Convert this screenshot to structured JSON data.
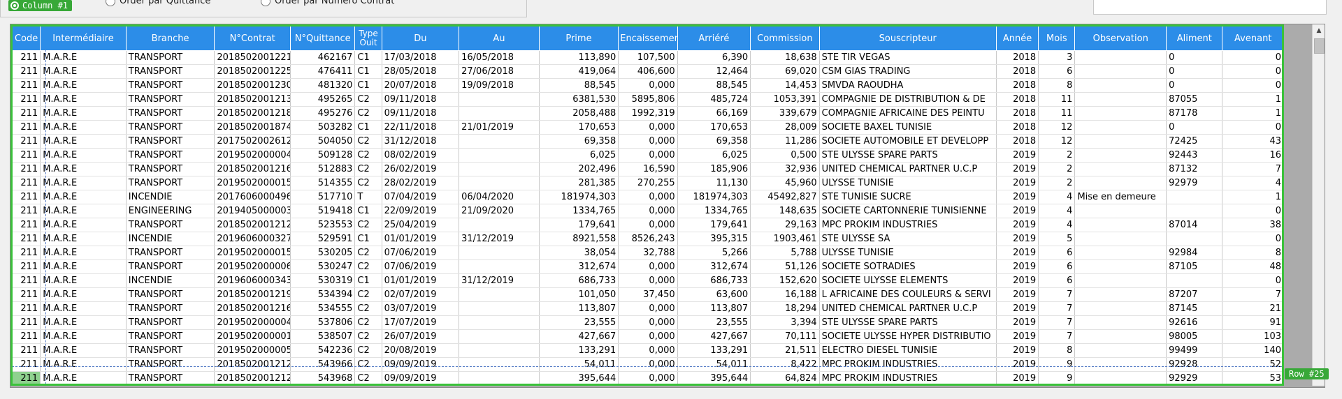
{
  "top_panel": {
    "radio_quittance": "Order par Quittance",
    "radio_contrat": "Order par Numéro Contrat"
  },
  "overlay": {
    "column_badge": "Column #1",
    "row_badge": "Row #25"
  },
  "colors": {
    "header_bg": "#2c8de8",
    "selection": "#3ac23a"
  },
  "columns": [
    "Code",
    "Intermédiaire",
    "Branche",
    "N°Contrat",
    "N°Quittance",
    "Type Ouit",
    "Du",
    "Au",
    "Prime",
    "Encaissement",
    "Arriéré",
    "Commission",
    "Souscripteur",
    "Année",
    "Mois",
    "Observation",
    "Aliment",
    "Avenant"
  ],
  "rows": [
    [
      "211",
      "M.A.R.E",
      "TRANSPORT",
      "2018502001221",
      "462167",
      "C1",
      "17/03/2018",
      "16/05/2018",
      "113,890",
      "107,500",
      "6,390",
      "18,638",
      "STE TIR VEGAS",
      "2018",
      "3",
      "",
      "0",
      "0"
    ],
    [
      "211",
      "M.A.R.E",
      "TRANSPORT",
      "2018502001225",
      "476411",
      "C1",
      "28/05/2018",
      "27/06/2018",
      "419,064",
      "406,600",
      "12,464",
      "69,020",
      "CSM  GIAS TRADING",
      "2018",
      "6",
      "",
      "0",
      "0"
    ],
    [
      "211",
      "M.A.R.E",
      "TRANSPORT",
      "2018502001230",
      "481320",
      "C1",
      "20/07/2018",
      "19/09/2018",
      "88,545",
      "0,000",
      "88,545",
      "14,453",
      "SMVDA RAOUDHA",
      "2018",
      "8",
      "",
      "0",
      "0"
    ],
    [
      "211",
      "M.A.R.E",
      "TRANSPORT",
      "2018502001213",
      "495265",
      "C2",
      "09/11/2018",
      "",
      "6381,530",
      "5895,806",
      "485,724",
      "1053,391",
      "COMPAGNIE DE DISTRIBUTION & DE",
      "2018",
      "11",
      "",
      "87055",
      "1"
    ],
    [
      "211",
      "M.A.R.E",
      "TRANSPORT",
      "2018502001218",
      "495276",
      "C2",
      "09/11/2018",
      "",
      "2058,488",
      "1992,319",
      "66,169",
      "339,679",
      "COMPAGNIE AFRICAINE DES PEINTU",
      "2018",
      "11",
      "",
      "87178",
      "1"
    ],
    [
      "211",
      "M.A.R.E",
      "TRANSPORT",
      "2018502001874",
      "503282",
      "C1",
      "22/11/2018",
      "21/01/2019",
      "170,653",
      "0,000",
      "170,653",
      "28,009",
      "SOCIETE BAXEL TUNISIE",
      "2018",
      "12",
      "",
      "0",
      "0"
    ],
    [
      "211",
      "M.A.R.E",
      "TRANSPORT",
      "2017502002612",
      "504050",
      "C2",
      "31/12/2018",
      "",
      "69,358",
      "0,000",
      "69,358",
      "11,286",
      "SOCIETE AUTOMOBILE ET DEVELOPP",
      "2018",
      "12",
      "",
      "72425",
      "43"
    ],
    [
      "211",
      "M.A.R.E",
      "TRANSPORT",
      "2019502000004",
      "509128",
      "C2",
      "08/02/2019",
      "",
      "6,025",
      "0,000",
      "6,025",
      "0,500",
      "STE  ULYSSE  SPARE PARTS",
      "2019",
      "2",
      "",
      "92443",
      "16"
    ],
    [
      "211",
      "M.A.R.E",
      "TRANSPORT",
      "2018502001216",
      "512883",
      "C2",
      "26/02/2019",
      "",
      "202,496",
      "16,590",
      "185,906",
      "32,936",
      "UNITED CHEMICAL PARTNER  U.C.P",
      "2019",
      "2",
      "",
      "87132",
      "7"
    ],
    [
      "211",
      "M.A.R.E",
      "TRANSPORT",
      "2019502000015",
      "514355",
      "C2",
      "28/02/2019",
      "",
      "281,385",
      "270,255",
      "11,130",
      "45,960",
      "ULYSSE TUNISIE",
      "2019",
      "2",
      "",
      "92979",
      "4"
    ],
    [
      "211",
      "M.A.R.E",
      "INCENDIE",
      "2017606000496",
      "517710",
      "T",
      "07/04/2019",
      "06/04/2020",
      "181974,303",
      "0,000",
      "181974,303",
      "45492,827",
      "STE TUNISIE SUCRE",
      "2019",
      "4",
      "Mise en demeure",
      "",
      "1"
    ],
    [
      "211",
      "M.A.R.E",
      "ENGINEERING",
      "2019405000003",
      "519418",
      "C1",
      "22/09/2019",
      "21/09/2020",
      "1334,765",
      "0,000",
      "1334,765",
      "148,635",
      "SOCIETE CARTONNERIE TUNISIENNE",
      "2019",
      "4",
      "",
      "",
      "0"
    ],
    [
      "211",
      "M.A.R.E",
      "TRANSPORT",
      "2018502001212",
      "523553",
      "C2",
      "25/04/2019",
      "",
      "179,641",
      "0,000",
      "179,641",
      "29,163",
      "MPC PROKIM INDUSTRIES",
      "2019",
      "4",
      "",
      "87014",
      "38"
    ],
    [
      "211",
      "M.A.R.E",
      "INCENDIE",
      "2019606000327",
      "529591",
      "C1",
      "01/01/2019",
      "31/12/2019",
      "8921,558",
      "8526,243",
      "395,315",
      "1903,461",
      "STE ULYSSE SA",
      "2019",
      "5",
      "",
      "",
      "0"
    ],
    [
      "211",
      "M.A.R.E",
      "TRANSPORT",
      "2019502000015",
      "530205",
      "C2",
      "07/06/2019",
      "",
      "38,054",
      "32,788",
      "5,266",
      "5,788",
      "ULYSSE TUNISIE",
      "2019",
      "6",
      "",
      "92984",
      "8"
    ],
    [
      "211",
      "M.A.R.E",
      "TRANSPORT",
      "2019502000006",
      "530247",
      "C2",
      "07/06/2019",
      "",
      "312,674",
      "0,000",
      "312,674",
      "51,126",
      "SOCIETE SOTRADIES",
      "2019",
      "6",
      "",
      "87105",
      "48"
    ],
    [
      "211",
      "M.A.R.E",
      "INCENDIE",
      "2019606000343",
      "530319",
      "C1",
      "01/01/2019",
      "31/12/2019",
      "686,733",
      "0,000",
      "686,733",
      "152,620",
      "SOCIETE ULYSSE ELEMENTS",
      "2019",
      "6",
      "",
      "",
      "0"
    ],
    [
      "211",
      "M.A.R.E",
      "TRANSPORT",
      "2018502001219",
      "534394",
      "C2",
      "02/07/2019",
      "",
      "101,050",
      "37,450",
      "63,600",
      "16,188",
      "L AFRICAINE DES COULEURS & SERVI",
      "2019",
      "7",
      "",
      "87207",
      "7"
    ],
    [
      "211",
      "M.A.R.E",
      "TRANSPORT",
      "2018502001216",
      "534555",
      "C2",
      "03/07/2019",
      "",
      "113,807",
      "0,000",
      "113,807",
      "18,294",
      "UNITED CHEMICAL PARTNER  U.C.P",
      "2019",
      "7",
      "",
      "87145",
      "21"
    ],
    [
      "211",
      "M.A.R.E",
      "TRANSPORT",
      "2019502000004",
      "537806",
      "C2",
      "17/07/2019",
      "",
      "23,555",
      "0,000",
      "23,555",
      "3,394",
      "STE  ULYSSE  SPARE PARTS",
      "2019",
      "7",
      "",
      "92616",
      "91"
    ],
    [
      "211",
      "M.A.R.E",
      "TRANSPORT",
      "2019502000001",
      "538507",
      "C2",
      "26/07/2019",
      "",
      "427,667",
      "0,000",
      "427,667",
      "70,111",
      "SOCIETE ULYSSE HYPER DISTRIBUTIO",
      "2019",
      "7",
      "",
      "98005",
      "103"
    ],
    [
      "211",
      "M.A.R.E",
      "TRANSPORT",
      "2019502000005",
      "542236",
      "C2",
      "20/08/2019",
      "",
      "133,291",
      "0,000",
      "133,291",
      "21,511",
      "ELECTRO DIESEL TUNISIE",
      "2019",
      "8",
      "",
      "99499",
      "140"
    ],
    [
      "211",
      "M.A.R.E",
      "TRANSPORT",
      "2018502001212",
      "543966",
      "C2",
      "09/09/2019",
      "",
      "54,011",
      "0,000",
      "54,011",
      "8,422",
      "MPC PROKIM INDUSTRIES",
      "2019",
      "9",
      "",
      "92928",
      "52"
    ],
    [
      "211",
      "M.A.R.E",
      "TRANSPORT",
      "2018502001212",
      "543968",
      "C2",
      "09/09/2019",
      "",
      "395,644",
      "0,000",
      "395,644",
      "64,824",
      "MPC PROKIM INDUSTRIES",
      "2019",
      "9",
      "",
      "92929",
      "53"
    ]
  ]
}
